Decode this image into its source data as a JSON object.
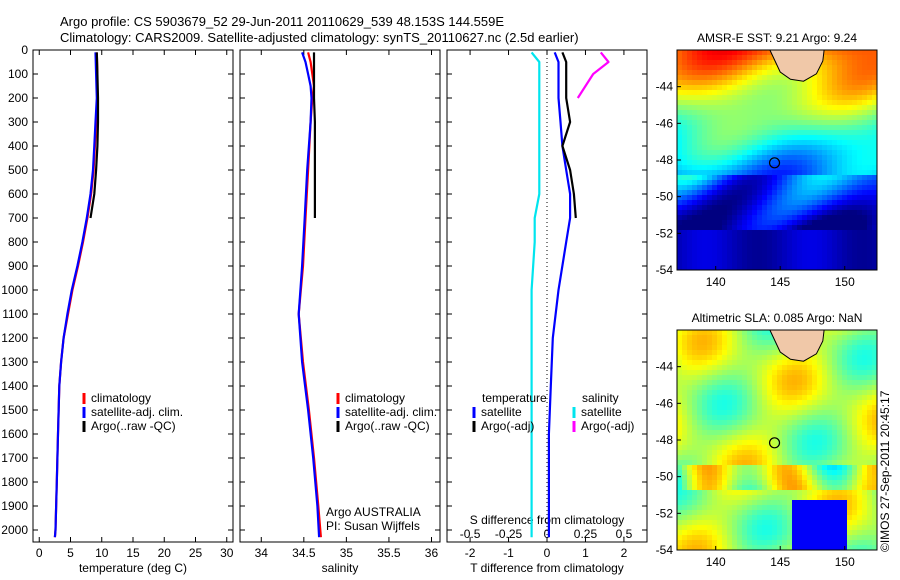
{
  "header": {
    "line1": "Argo profile: CS 5903679_52 29-Jun-2011 20110629_539 48.153S 144.559E",
    "line2": "Climatology: CARS2009. Satellite-adjusted climatology: synTS_20110627.nc (2.5d earlier)"
  },
  "side_stamp": "©IMOS 27-Sep-2011 20:45:17",
  "colors": {
    "climatology": "#ff0000",
    "satellite": "#0000ff",
    "argo": "#000000",
    "sal_satellite": "#00e5ee",
    "sal_argo": "#ff00ff"
  },
  "chart_data": [
    {
      "type": "line",
      "id": "temperature",
      "xlabel": "temperature (deg C)",
      "ylabel": "",
      "xlim": [
        -1,
        31
      ],
      "ylim": [
        2050,
        0
      ],
      "xticks": [
        0,
        5,
        10,
        15,
        20,
        25,
        30
      ],
      "yticks": [
        0,
        100,
        200,
        300,
        400,
        500,
        600,
        700,
        800,
        900,
        1000,
        1100,
        1200,
        1300,
        1400,
        1500,
        1600,
        1700,
        1800,
        1900,
        2000
      ],
      "legend": [
        "climatology",
        "satellite-adj. clim.",
        "Argo(..raw -QC)"
      ],
      "depth": [
        10,
        100,
        200,
        300,
        400,
        500,
        600,
        700,
        800,
        900,
        1000,
        1100,
        1200,
        1300,
        1400,
        1600,
        1800,
        2000,
        2030
      ],
      "series": [
        {
          "name": "climatology",
          "values": [
            9.2,
            9.3,
            9.3,
            9.1,
            8.9,
            8.7,
            8.3,
            7.7,
            7.0,
            6.2,
            5.3,
            4.6,
            3.9,
            3.5,
            3.2,
            3.0,
            2.8,
            2.6,
            2.5
          ]
        },
        {
          "name": "satellite-adj. clim.",
          "values": [
            9.0,
            9.1,
            9.2,
            9.0,
            8.8,
            8.6,
            8.2,
            7.6,
            6.9,
            6.1,
            5.2,
            4.5,
            3.9,
            3.5,
            3.2,
            3.0,
            2.8,
            2.6,
            2.5
          ]
        },
        {
          "name": "Argo(..raw -QC)",
          "values": [
            9.2,
            9.3,
            9.4,
            9.4,
            9.3,
            9.1,
            8.8,
            8.2
          ]
        }
      ]
    },
    {
      "type": "line",
      "id": "salinity",
      "xlabel": "salinity",
      "xlim": [
        33.75,
        36.1
      ],
      "ylim": [
        2050,
        0
      ],
      "xticks": [
        34,
        34.5,
        35,
        35.5,
        36
      ],
      "legend": [
        "climatology",
        "satellite-adj. clim.",
        "Argo(..raw -QC)"
      ],
      "annotation": [
        "Argo AUSTRALIA",
        "PI: Susan Wijffels"
      ],
      "depth": [
        10,
        50,
        100,
        150,
        200,
        300,
        500,
        700,
        900,
        1100,
        1300,
        1500,
        1700,
        1900,
        2030
      ],
      "series": [
        {
          "name": "climatology",
          "values": [
            34.55,
            34.58,
            34.6,
            34.62,
            34.6,
            34.58,
            34.55,
            34.52,
            34.49,
            34.44,
            34.49,
            34.56,
            34.62,
            34.67,
            34.7
          ]
        },
        {
          "name": "satellite-adj. clim.",
          "values": [
            34.48,
            34.52,
            34.55,
            34.58,
            34.59,
            34.58,
            34.54,
            34.51,
            34.48,
            34.44,
            34.48,
            34.55,
            34.61,
            34.66,
            34.68
          ]
        },
        {
          "name": "Argo(..raw -QC)",
          "values": [
            34.62,
            34.62,
            34.62,
            34.62,
            34.62,
            34.63,
            34.63,
            34.63
          ]
        }
      ]
    },
    {
      "type": "line",
      "id": "difference",
      "xlabel": "T difference from climatology",
      "xlabel_top": "S difference from climatology",
      "xlim": [
        -2.6,
        2.6
      ],
      "ylim": [
        2050,
        0
      ],
      "xticks": [
        -2,
        -1,
        0,
        1,
        2
      ],
      "xticks_top": [
        "-0.5",
        "-0.25",
        "0",
        "0.25",
        "0.5"
      ],
      "legend_temperature": {
        "title": "temperature",
        "items": [
          "satellite",
          "Argo(-adj)"
        ]
      },
      "legend_salinity": {
        "title": "salinity",
        "items": [
          "satellite",
          "Argo(-adj)"
        ]
      },
      "depth": [
        10,
        50,
        100,
        200,
        300,
        400,
        500,
        600,
        700,
        800,
        1000,
        1200,
        1400,
        1600,
        1800,
        2030
      ],
      "series": [
        {
          "name": "T satellite",
          "values": [
            0.2,
            0.3,
            0.3,
            0.3,
            0.35,
            0.4,
            0.5,
            0.6,
            0.6,
            0.5,
            0.3,
            0.15,
            0.1,
            0.05,
            0.05,
            0.05
          ]
        },
        {
          "name": "T Argo(-adj)",
          "values": [
            0.4,
            0.5,
            0.5,
            0.5,
            0.6,
            0.4,
            0.6,
            0.7,
            0.75
          ]
        },
        {
          "name": "S satellite",
          "values": [
            -0.1,
            -0.05,
            -0.05,
            -0.05,
            -0.05,
            -0.05,
            -0.05,
            -0.05,
            -0.08,
            -0.08,
            -0.1,
            -0.1,
            -0.1,
            -0.1,
            -0.1,
            -0.1
          ]
        },
        {
          "name": "S Argo(-adj)",
          "values": [
            0.35,
            0.4,
            0.3,
            0.2
          ]
        }
      ]
    },
    {
      "type": "heatmap",
      "id": "sst-map",
      "title": "AMSR-E SST: 9.21 Argo: 9.24",
      "xlim": [
        137,
        152.5
      ],
      "ylim": [
        -54,
        -42
      ],
      "xticks": [
        140,
        145,
        150
      ],
      "yticks": [
        -44,
        -46,
        -48,
        -50,
        -52,
        -54
      ],
      "marker": {
        "lon": 144.559,
        "lat": -48.153
      }
    },
    {
      "type": "heatmap",
      "id": "sla-map",
      "title": "Altimetric SLA: 0.085 Argo: NaN",
      "xlim": [
        137,
        152.5
      ],
      "ylim": [
        -54,
        -42
      ],
      "xticks": [
        140,
        145,
        150
      ],
      "yticks": [
        -44,
        -46,
        -48,
        -50,
        -52,
        -54
      ],
      "marker": {
        "lon": 144.559,
        "lat": -48.153
      }
    }
  ]
}
